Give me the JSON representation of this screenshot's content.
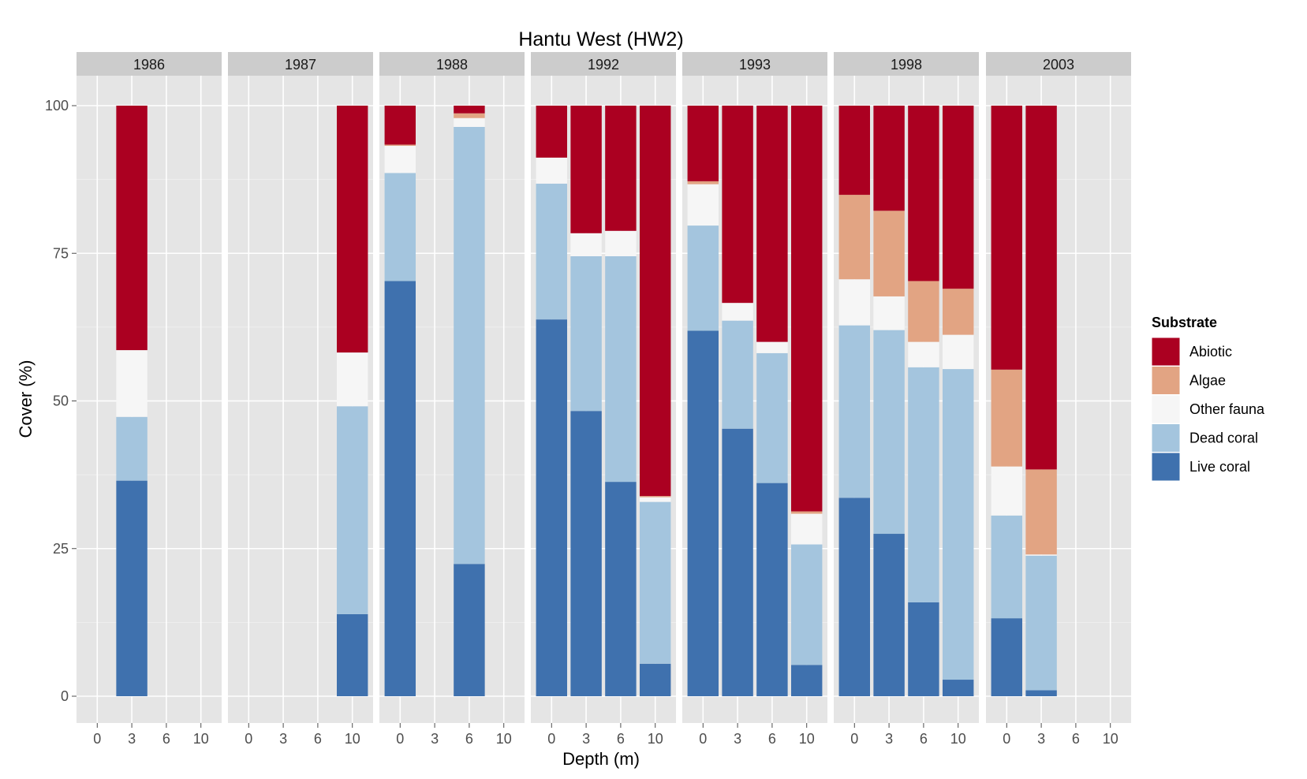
{
  "chart_data": {
    "type": "bar",
    "stacked": true,
    "title": "Hantu West (HW2)",
    "xlabel": "Depth (m)",
    "ylabel": "Cover (%)",
    "ylim": [
      0,
      105
    ],
    "yticks": [
      0,
      25,
      50,
      75,
      100
    ],
    "categories": [
      "0",
      "3",
      "6",
      "10"
    ],
    "grid": true,
    "legend": {
      "title": "Substrate",
      "position": "right",
      "entries": [
        "Abiotic",
        "Algae",
        "Other fauna",
        "Dead coral",
        "Live coral"
      ]
    },
    "stack_order_bottom_to_top": [
      "Live coral",
      "Dead coral",
      "Other fauna",
      "Algae",
      "Abiotic"
    ],
    "colors": {
      "Abiotic": "#ab0021",
      "Algae": "#e2a483",
      "Other fauna": "#f6f6f6",
      "Dead coral": "#a4c5de",
      "Live coral": "#3f71ae"
    },
    "facets": [
      {
        "label": "1986",
        "bars": [
          {
            "depth": "3",
            "Live coral": 36.5,
            "Dead coral": 10.8,
            "Other fauna": 11.3,
            "Algae": 0,
            "Abiotic": 41.4
          }
        ]
      },
      {
        "label": "1987",
        "bars": [
          {
            "depth": "10",
            "Live coral": 13.9,
            "Dead coral": 35.2,
            "Other fauna": 9.1,
            "Algae": 0,
            "Abiotic": 41.8
          }
        ]
      },
      {
        "label": "1988",
        "bars": [
          {
            "depth": "0",
            "Live coral": 70.3,
            "Dead coral": 18.3,
            "Other fauna": 4.6,
            "Algae": 0.2,
            "Abiotic": 6.6
          },
          {
            "depth": "6",
            "Live coral": 22.4,
            "Dead coral": 74.0,
            "Other fauna": 1.5,
            "Algae": 0.8,
            "Abiotic": 1.3
          }
        ]
      },
      {
        "label": "1992",
        "bars": [
          {
            "depth": "0",
            "Live coral": 63.8,
            "Dead coral": 23.0,
            "Other fauna": 4.4,
            "Algae": 0,
            "Abiotic": 8.8
          },
          {
            "depth": "3",
            "Live coral": 48.3,
            "Dead coral": 26.2,
            "Other fauna": 3.9,
            "Algae": 0,
            "Abiotic": 21.6
          },
          {
            "depth": "6",
            "Live coral": 36.3,
            "Dead coral": 38.2,
            "Other fauna": 4.3,
            "Algae": 0,
            "Abiotic": 21.2
          },
          {
            "depth": "10",
            "Live coral": 5.5,
            "Dead coral": 27.4,
            "Other fauna": 0.8,
            "Algae": 0.2,
            "Abiotic": 66.1
          }
        ]
      },
      {
        "label": "1993",
        "bars": [
          {
            "depth": "0",
            "Live coral": 61.9,
            "Dead coral": 17.8,
            "Other fauna": 7.0,
            "Algae": 0.5,
            "Abiotic": 12.8
          },
          {
            "depth": "3",
            "Live coral": 45.3,
            "Dead coral": 18.3,
            "Other fauna": 3.0,
            "Algae": 0,
            "Abiotic": 33.4
          },
          {
            "depth": "6",
            "Live coral": 36.1,
            "Dead coral": 22.0,
            "Other fauna": 1.9,
            "Algae": 0,
            "Abiotic": 40.0
          },
          {
            "depth": "10",
            "Live coral": 5.3,
            "Dead coral": 20.4,
            "Other fauna": 5.2,
            "Algae": 0.4,
            "Abiotic": 68.7
          }
        ]
      },
      {
        "label": "1998",
        "bars": [
          {
            "depth": "0",
            "Live coral": 33.6,
            "Dead coral": 29.2,
            "Other fauna": 7.8,
            "Algae": 14.3,
            "Abiotic": 15.1
          },
          {
            "depth": "3",
            "Live coral": 27.5,
            "Dead coral": 34.5,
            "Other fauna": 5.7,
            "Algae": 14.5,
            "Abiotic": 17.8
          },
          {
            "depth": "6",
            "Live coral": 15.9,
            "Dead coral": 39.8,
            "Other fauna": 4.3,
            "Algae": 10.3,
            "Abiotic": 29.7
          },
          {
            "depth": "10",
            "Live coral": 2.8,
            "Dead coral": 52.6,
            "Other fauna": 5.8,
            "Algae": 7.8,
            "Abiotic": 31.0
          }
        ]
      },
      {
        "label": "2003",
        "bars": [
          {
            "depth": "0",
            "Live coral": 13.2,
            "Dead coral": 17.4,
            "Other fauna": 8.3,
            "Algae": 16.4,
            "Abiotic": 44.7
          },
          {
            "depth": "3",
            "Live coral": 1.0,
            "Dead coral": 22.8,
            "Other fauna": 0.2,
            "Algae": 14.4,
            "Abiotic": 61.6
          }
        ]
      }
    ]
  }
}
